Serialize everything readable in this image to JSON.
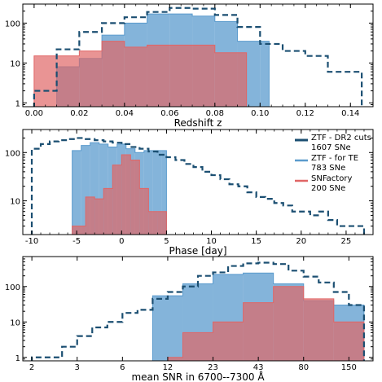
{
  "colors": {
    "ztf_dr2": "#1b4f72",
    "ztf_te": "#5b9bcd",
    "snfactory": "#e06666",
    "overlap": "#a0506a"
  },
  "chart_data": [
    {
      "type": "histogram",
      "xlabel": "Redshift z",
      "xlim": [
        -0.005,
        0.15
      ],
      "ylim": [
        0.8,
        300
      ],
      "yscale": "log",
      "xticks": [
        "0.00",
        "0.02",
        "0.04",
        "0.06",
        "0.08",
        "0.10",
        "0.12",
        "0.14"
      ],
      "yticks": [
        "1",
        "10",
        "100"
      ],
      "series": [
        {
          "name": "ZTF - DR2 cuts",
          "style": "step-dashed",
          "edges": [
            0.0,
            0.01,
            0.02,
            0.03,
            0.04,
            0.05,
            0.06,
            0.07,
            0.08,
            0.09,
            0.1,
            0.11,
            0.12,
            0.13,
            0.14,
            0.145
          ],
          "counts": [
            2,
            22,
            60,
            100,
            140,
            190,
            240,
            230,
            160,
            80,
            30,
            20,
            15,
            6,
            6
          ]
        },
        {
          "name": "ZTF - for TE",
          "style": "filled",
          "edges": [
            0.01,
            0.02,
            0.03,
            0.04,
            0.05,
            0.06,
            0.07,
            0.08,
            0.09,
            0.1,
            0.104
          ],
          "counts": [
            8,
            13,
            50,
            100,
            170,
            170,
            150,
            110,
            35,
            35
          ]
        },
        {
          "name": "SNFactory",
          "style": "filled",
          "edges": [
            0.0,
            0.01,
            0.02,
            0.03,
            0.04,
            0.05,
            0.06,
            0.07,
            0.08,
            0.09,
            0.094
          ],
          "counts": [
            15,
            15,
            20,
            35,
            25,
            28,
            28,
            28,
            18,
            18
          ]
        }
      ]
    },
    {
      "type": "histogram",
      "xlabel": "Phase [day]",
      "xlim": [
        -11,
        28
      ],
      "ylim": [
        2,
        300
      ],
      "yscale": "log",
      "xticks": [
        "-10",
        "-5",
        "0",
        "5",
        "10",
        "15",
        "20",
        "25"
      ],
      "yticks": [
        "10",
        "100"
      ],
      "legend_position": "top-right",
      "legend": [
        {
          "line1": "ZTF - DR2 cuts",
          "line2": "1607 SNe"
        },
        {
          "line1": "ZTF - for TE",
          "line2": "783 SNe"
        },
        {
          "line1": "SNFactory",
          "line2": "200 SNe"
        }
      ],
      "series": [
        {
          "name": "ZTF - DR2 cuts",
          "style": "step-dashed",
          "edges": [
            -10,
            -9,
            -8,
            -7,
            -6,
            -5,
            -4,
            -3,
            -2,
            -1,
            0,
            1,
            2,
            3,
            4,
            5,
            6,
            7,
            8,
            9,
            10,
            11,
            12,
            13,
            14,
            15,
            16,
            17,
            18,
            19,
            20,
            21,
            22,
            23,
            24,
            25,
            26,
            27
          ],
          "counts": [
            120,
            150,
            170,
            180,
            190,
            200,
            190,
            180,
            170,
            160,
            150,
            130,
            120,
            105,
            90,
            80,
            70,
            58,
            50,
            40,
            34,
            28,
            22,
            20,
            15,
            12,
            11,
            9,
            8,
            6,
            6,
            5,
            6,
            4,
            3,
            3,
            3
          ]
        },
        {
          "name": "ZTF - for TE",
          "style": "filled",
          "edges": [
            -5.5,
            -4.5,
            -3.5,
            -2.5,
            -1.5,
            -0.5,
            0.5,
            1.5,
            2.5,
            3.5,
            4.5,
            5.0
          ],
          "counts": [
            110,
            140,
            160,
            150,
            130,
            150,
            120,
            100,
            110,
            110,
            110
          ]
        },
        {
          "name": "SNFactory",
          "style": "filled",
          "edges": [
            -5.5,
            -4,
            -3,
            -2,
            -1,
            0,
            1,
            2,
            3,
            4,
            5.0
          ],
          "counts": [
            3,
            12,
            11,
            18,
            55,
            90,
            70,
            18,
            6,
            6
          ]
        }
      ]
    },
    {
      "type": "histogram",
      "xlabel": "mean SNR in 6700--7300 Å",
      "xlim": [
        -0.3,
        11.3
      ],
      "ylim": [
        0.8,
        700
      ],
      "yscale": "log",
      "xticks": [
        "2",
        "3",
        "6",
        "12",
        "23",
        "43",
        "80",
        "150"
      ],
      "yticks": [
        "1",
        "10",
        "100"
      ],
      "series": [
        {
          "name": "ZTF - DR2 cuts",
          "style": "step-dashed",
          "edges": [
            0,
            0.5,
            1,
            1.5,
            2,
            2.5,
            3,
            3.5,
            4,
            4.5,
            5,
            5.5,
            6,
            6.5,
            7,
            7.5,
            8,
            8.5,
            9,
            9.5,
            10,
            10.5,
            11
          ],
          "counts": [
            1,
            1,
            2,
            4,
            7,
            10,
            18,
            22,
            45,
            70,
            100,
            200,
            250,
            380,
            450,
            470,
            430,
            280,
            190,
            130,
            70,
            30
          ]
        },
        {
          "name": "ZTF - for TE",
          "style": "filled",
          "edges": [
            4,
            5,
            6,
            7,
            8,
            9,
            10,
            11
          ],
          "counts": [
            55,
            120,
            220,
            240,
            120,
            40,
            30
          ]
        },
        {
          "name": "SNFactory",
          "style": "filled",
          "edges": [
            4.5,
            5,
            6,
            7,
            8,
            9,
            10,
            11
          ],
          "counts": [
            1,
            5,
            10,
            35,
            100,
            45,
            10
          ]
        }
      ]
    }
  ]
}
